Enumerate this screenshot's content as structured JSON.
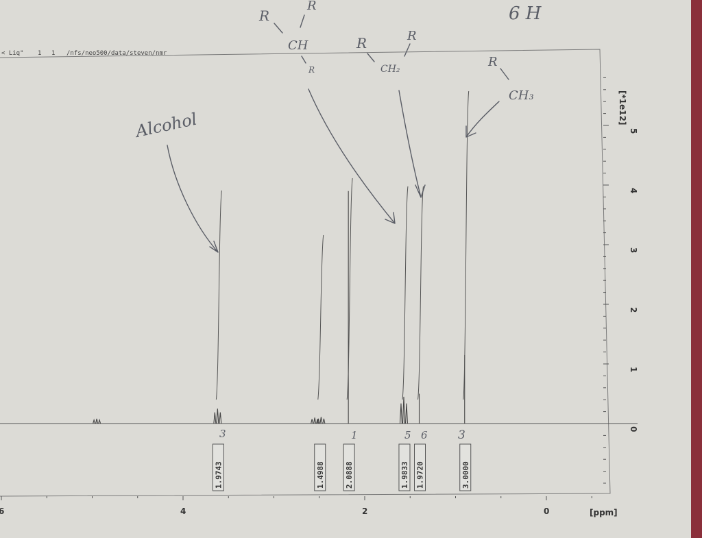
{
  "header": {
    "experiment": "< Liq\"",
    "expno": "1",
    "procno": "1",
    "path": "/nfs/neo500/data/steven/nmr"
  },
  "chart_data": {
    "type": "line",
    "title": "",
    "xlabel": "[ppm]",
    "ylabel": "[*1e12]",
    "xlim": [
      6.2,
      -0.9
    ],
    "ylim": [
      0,
      6
    ],
    "x_ticks": [
      "6",
      "4",
      "2",
      "0"
    ],
    "y_ticks": [
      "0",
      "1",
      "2",
      "3",
      "4",
      "5"
    ],
    "peaks": [
      {
        "ppm": 4.95,
        "height": 0.08
      },
      {
        "ppm": 3.62,
        "height": 0.25
      },
      {
        "ppm": 2.55,
        "height": 0.1
      },
      {
        "ppm": 2.48,
        "height": 0.11
      },
      {
        "ppm": 2.18,
        "height": 3.9
      },
      {
        "ppm": 1.57,
        "height": 0.45
      },
      {
        "ppm": 1.4,
        "height": 0.5
      },
      {
        "ppm": 0.9,
        "height": 1.15
      }
    ],
    "integrals": [
      {
        "ppm": 3.62,
        "value": "1.9743"
      },
      {
        "ppm": 2.5,
        "value": "1.4988"
      },
      {
        "ppm": 2.18,
        "value": "2.0888"
      },
      {
        "ppm": 1.57,
        "value": "1.9833"
      },
      {
        "ppm": 1.4,
        "value": "1.9720"
      },
      {
        "ppm": 0.9,
        "value": "3.0000"
      }
    ]
  },
  "annotations": {
    "alcohol": "Alcohol",
    "ch": "CH",
    "ch2": "CH₂",
    "ch3": "CH₃",
    "r": "R",
    "total_h": "6 H",
    "multiplicity_1": "3",
    "multiplicity_2": "1",
    "multiplicity_3": "5",
    "multiplicity_4": "6",
    "multiplicity_5": "3"
  }
}
